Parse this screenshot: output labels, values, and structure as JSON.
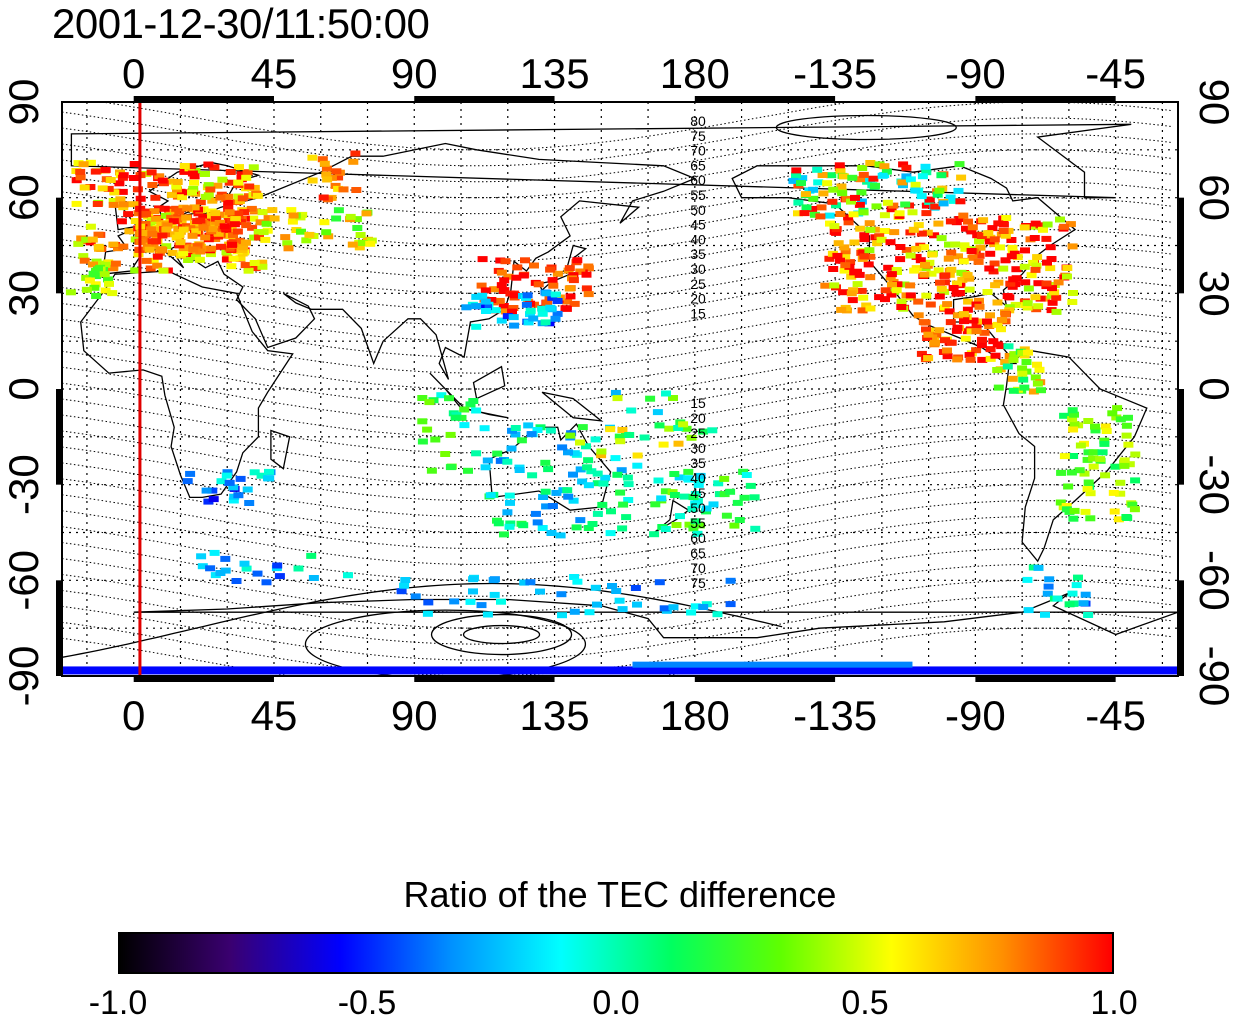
{
  "title": "2001-12-30/11:50:00",
  "map": {
    "projection": "equirectangular",
    "longitude_range": [
      -23,
      335
    ],
    "latitude_range": [
      -90,
      90
    ],
    "top_lon_ticks": [
      "0",
      "45",
      "90",
      "135",
      "180",
      "-135",
      "-90",
      "-45"
    ],
    "bottom_lon_ticks": [
      "0",
      "45",
      "90",
      "135",
      "180",
      "-135",
      "-90",
      "-45"
    ],
    "left_lat_ticks": [
      "90",
      "60",
      "30",
      "0",
      "-30",
      "-60",
      "-90"
    ],
    "right_lat_ticks": [
      "90",
      "60",
      "30",
      "0",
      "-30",
      "-60",
      "-90"
    ],
    "grid": "dotted",
    "marker_line": {
      "longitude": 2,
      "color": "#e00000"
    },
    "contour_labels_north": [
      "80",
      "75",
      "70",
      "65",
      "60",
      "55",
      "50",
      "45",
      "40",
      "35",
      "30",
      "25",
      "20",
      "15"
    ],
    "contour_labels_south": [
      "15",
      "20",
      "25",
      "30",
      "35",
      "40",
      "45",
      "50",
      "55",
      "60",
      "65",
      "70",
      "75"
    ]
  },
  "colorbar": {
    "title": "Ratio of the TEC difference",
    "min": -1.0,
    "max": 1.0,
    "tick_labels": [
      "-1.0",
      "-0.5",
      "0.0",
      "0.5",
      "1.0"
    ],
    "colors": [
      "#000000",
      "#3a0070",
      "#0000ff",
      "#0090ff",
      "#00ffff",
      "#00ff60",
      "#60ff00",
      "#ffff00",
      "#ff9000",
      "#ff0000"
    ]
  }
}
